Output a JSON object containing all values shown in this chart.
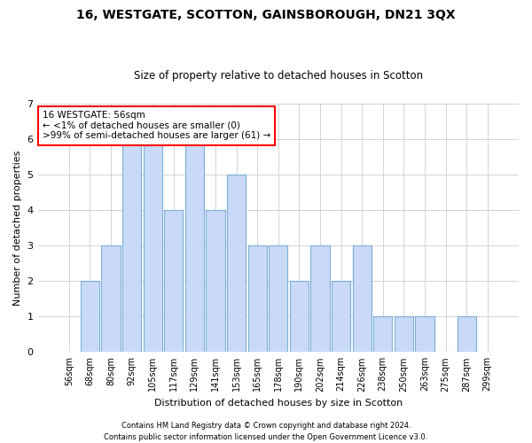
{
  "title1": "16, WESTGATE, SCOTTON, GAINSBOROUGH, DN21 3QX",
  "title2": "Size of property relative to detached houses in Scotton",
  "xlabel": "Distribution of detached houses by size in Scotton",
  "ylabel": "Number of detached properties",
  "categories": [
    "56sqm",
    "68sqm",
    "80sqm",
    "92sqm",
    "105sqm",
    "117sqm",
    "129sqm",
    "141sqm",
    "153sqm",
    "165sqm",
    "178sqm",
    "190sqm",
    "202sqm",
    "214sqm",
    "226sqm",
    "238sqm",
    "250sqm",
    "263sqm",
    "275sqm",
    "287sqm",
    "299sqm"
  ],
  "values": [
    0,
    2,
    3,
    6,
    6,
    4,
    6,
    4,
    5,
    3,
    3,
    2,
    3,
    2,
    3,
    1,
    1,
    1,
    0,
    1,
    0
  ],
  "bar_color": "#c9daf8",
  "bar_edge_color": "#7bafd4",
  "background_color": "#ffffff",
  "grid_color": "#cccccc",
  "annotation_text_line1": "16 WESTGATE: 56sqm",
  "annotation_text_line2": "← <1% of detached houses are smaller (0)",
  "annotation_text_line3": ">99% of semi-detached houses are larger (61) →",
  "footer1": "Contains HM Land Registry data © Crown copyright and database right 2024.",
  "footer2": "Contains public sector information licensed under the Open Government Licence v3.0.",
  "ylim": [
    0,
    7
  ],
  "yticks": [
    0,
    1,
    2,
    3,
    4,
    5,
    6,
    7
  ]
}
